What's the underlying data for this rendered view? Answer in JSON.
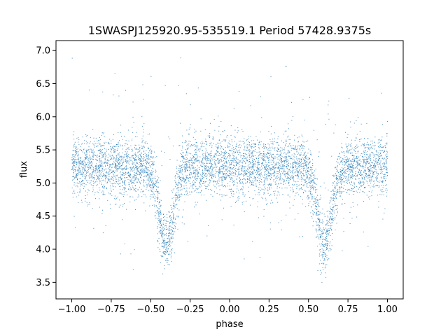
{
  "chart_data": {
    "type": "scatter",
    "title": "1SWASPJ125920.95-535519.1 Period 57428.9375s",
    "xlabel": "phase",
    "ylabel": "flux",
    "xlim": [
      -1.1,
      1.1
    ],
    "ylim": [
      3.25,
      7.15
    ],
    "xticks": [
      -1.0,
      -0.75,
      -0.5,
      -0.25,
      0.0,
      0.25,
      0.5,
      0.75,
      1.0
    ],
    "xtick_labels": [
      "−1.00",
      "−0.75",
      "−0.50",
      "−0.25",
      "0.00",
      "0.25",
      "0.50",
      "0.75",
      "1.00"
    ],
    "yticks": [
      3.5,
      4.0,
      4.5,
      5.0,
      5.5,
      6.0,
      6.5,
      7.0
    ],
    "ytick_labels": [
      "3.5",
      "4.0",
      "4.5",
      "5.0",
      "5.5",
      "6.0",
      "6.5",
      "7.0"
    ],
    "grid": false,
    "legend": "none",
    "point_color": "#1f77b4",
    "series": [
      {
        "x_range": [
          -1.0,
          1.0
        ],
        "baseline_flux": 5.25,
        "baseline_scatter": 0.22,
        "dips": [
          {
            "phase": -0.4,
            "min_flux": 4.05
          },
          {
            "phase": 0.6,
            "min_flux": 4.05
          }
        ]
      }
    ]
  }
}
